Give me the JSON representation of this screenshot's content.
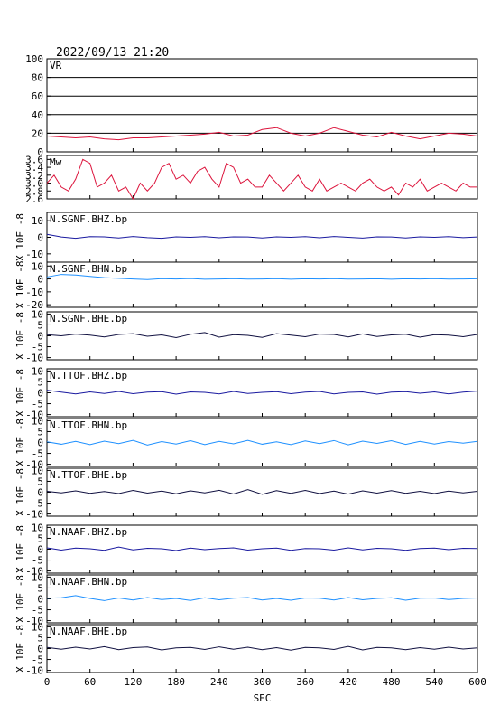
{
  "chart_data": [
    {
      "type": "line",
      "title": "2022/09/13 21:20",
      "label": "VR",
      "color": "#dc143c",
      "grid": true,
      "xlim": [
        0,
        600
      ],
      "ylim": [
        0,
        100
      ],
      "yticks": [
        0,
        20,
        40,
        60,
        80,
        100
      ],
      "x": [
        0,
        20,
        40,
        60,
        80,
        100,
        120,
        140,
        160,
        180,
        200,
        220,
        240,
        260,
        280,
        300,
        320,
        340,
        360,
        380,
        400,
        420,
        440,
        460,
        480,
        500,
        520,
        540,
        560,
        580,
        600
      ],
      "values": [
        17,
        16,
        15,
        16,
        14,
        13,
        15,
        15,
        16,
        17,
        18,
        19,
        21,
        17,
        18,
        24,
        26,
        20,
        17,
        20,
        26,
        22,
        18,
        16,
        21,
        17,
        14,
        17,
        20,
        19,
        17
      ]
    },
    {
      "type": "line",
      "label": "Mw",
      "color": "#dc143c",
      "xlim": [
        0,
        600
      ],
      "ylim": [
        2.6,
        3.7
      ],
      "yticks": [
        2.6,
        2.8,
        {
          "value": 3,
          "label": "3.0"
        },
        3.2,
        3.4,
        3.6
      ],
      "x": [
        0,
        10,
        20,
        30,
        40,
        50,
        60,
        70,
        80,
        90,
        100,
        110,
        120,
        130,
        140,
        150,
        160,
        170,
        180,
        190,
        200,
        210,
        220,
        230,
        240,
        250,
        260,
        270,
        280,
        290,
        300,
        310,
        320,
        330,
        340,
        350,
        360,
        370,
        380,
        390,
        400,
        410,
        420,
        430,
        440,
        450,
        460,
        470,
        480,
        490,
        500,
        510,
        520,
        530,
        540,
        550,
        560,
        570,
        580,
        590,
        600
      ],
      "values": [
        3.0,
        3.2,
        2.9,
        2.8,
        3.1,
        3.6,
        3.5,
        2.9,
        3.0,
        3.2,
        2.8,
        2.9,
        2.6,
        3.0,
        2.8,
        3.0,
        3.4,
        3.5,
        3.1,
        3.2,
        3.0,
        3.3,
        3.4,
        3.1,
        2.9,
        3.5,
        3.4,
        3.0,
        3.1,
        2.9,
        2.9,
        3.2,
        3.0,
        2.8,
        3.0,
        3.2,
        2.9,
        2.8,
        3.1,
        2.8,
        2.9,
        3.0,
        2.9,
        2.8,
        3.0,
        3.1,
        2.9,
        2.8,
        2.9,
        2.7,
        3.0,
        2.9,
        3.1,
        2.8,
        2.9,
        3.0,
        2.9,
        2.8,
        3.0,
        2.9,
        2.9
      ]
    },
    {
      "type": "line",
      "label": "N.SGNF.BHZ.bp",
      "ylabel": "X 10E -8",
      "color": "#1a1aa0",
      "xlim": [
        0,
        600
      ],
      "ylim": [
        -15,
        15
      ],
      "yticks": [
        -10,
        0,
        10
      ],
      "x": [
        0,
        20,
        40,
        60,
        80,
        100,
        120,
        140,
        160,
        180,
        200,
        220,
        240,
        260,
        280,
        300,
        320,
        340,
        360,
        380,
        400,
        420,
        440,
        460,
        480,
        500,
        520,
        540,
        560,
        580,
        600
      ],
      "values": [
        1.8,
        0.2,
        -0.6,
        0.4,
        0.3,
        -0.4,
        0.5,
        -0.2,
        -0.6,
        0.3,
        0,
        0.4,
        -0.3,
        0.3,
        0.2,
        -0.4,
        0.3,
        0,
        0.4,
        -0.3,
        0.5,
        0,
        -0.5,
        0.3,
        0.2,
        -0.4,
        0.3,
        0,
        0.4,
        -0.2,
        0.2
      ]
    },
    {
      "type": "line",
      "label": "N.SGNF.BHN.bp",
      "ylabel": "X 10E -8",
      "color": "#1e90ff",
      "xlim": [
        0,
        600
      ],
      "ylim": [
        -22,
        13
      ],
      "yticks": [
        -20,
        -10,
        0,
        10
      ],
      "x": [
        0,
        20,
        40,
        60,
        80,
        100,
        120,
        140,
        160,
        180,
        200,
        220,
        240,
        260,
        280,
        300,
        320,
        340,
        360,
        380,
        400,
        420,
        440,
        460,
        480,
        500,
        520,
        540,
        560,
        580,
        600
      ],
      "values": [
        1.5,
        3.5,
        3,
        2,
        1,
        0.5,
        0,
        -0.5,
        0.2,
        0,
        0.3,
        -0.2,
        0,
        0.2,
        -0.1,
        0,
        0.2,
        -0.2,
        0.1,
        0,
        0.2,
        -0.1,
        0,
        0.1,
        -0.2,
        0.1,
        0,
        0.2,
        -0.1,
        0,
        0.1
      ]
    },
    {
      "type": "line",
      "label": "N.SGNF.BHE.bp",
      "ylabel": "X 10E -8",
      "color": "#101040",
      "xlim": [
        0,
        600
      ],
      "ylim": [
        -11,
        11
      ],
      "yticks": [
        -10,
        -5,
        0,
        5,
        10
      ],
      "x": [
        0,
        20,
        40,
        60,
        80,
        100,
        120,
        140,
        160,
        180,
        200,
        220,
        240,
        260,
        280,
        300,
        320,
        340,
        360,
        380,
        400,
        420,
        440,
        460,
        480,
        500,
        520,
        540,
        560,
        580,
        600
      ],
      "values": [
        0.5,
        0,
        0.8,
        0.3,
        -0.5,
        0.6,
        1,
        -0.2,
        0.4,
        -0.8,
        0.7,
        1.5,
        -0.6,
        0.5,
        0.2,
        -0.7,
        1,
        0.3,
        -0.4,
        0.8,
        0.6,
        -0.5,
        0.9,
        -0.3,
        0.4,
        0.7,
        -0.6,
        0.5,
        0.3,
        -0.4,
        0.6
      ]
    },
    {
      "type": "line",
      "label": "N.TTOF.BHZ.bp",
      "ylabel": "X 10E -8",
      "color": "#1a1aa0",
      "xlim": [
        0,
        600
      ],
      "ylim": [
        -11,
        11
      ],
      "yticks": [
        -10,
        -5,
        0,
        5,
        10
      ],
      "x": [
        0,
        20,
        40,
        60,
        80,
        100,
        120,
        140,
        160,
        180,
        200,
        220,
        240,
        260,
        280,
        300,
        320,
        340,
        360,
        380,
        400,
        420,
        440,
        460,
        480,
        500,
        520,
        540,
        560,
        580,
        600
      ],
      "values": [
        1.2,
        0.3,
        -0.5,
        0.4,
        -0.3,
        0.6,
        -0.4,
        0.3,
        0.5,
        -0.6,
        0.4,
        0.2,
        -0.5,
        0.6,
        -0.3,
        0.2,
        0.5,
        -0.4,
        0.3,
        0.6,
        -0.5,
        0.2,
        0.4,
        -0.6,
        0.3,
        0.5,
        -0.2,
        0.4,
        -0.5,
        0.3,
        0.8
      ]
    },
    {
      "type": "line",
      "label": "N.TTOF.BHN.bp",
      "ylabel": "X 10E -8",
      "color": "#1e90ff",
      "xlim": [
        0,
        600
      ],
      "ylim": [
        -11,
        11
      ],
      "yticks": [
        -10,
        -5,
        0,
        5,
        10
      ],
      "x": [
        0,
        20,
        40,
        60,
        80,
        100,
        120,
        140,
        160,
        180,
        200,
        220,
        240,
        260,
        280,
        300,
        320,
        340,
        360,
        380,
        400,
        420,
        440,
        460,
        480,
        500,
        520,
        540,
        560,
        580,
        600
      ],
      "values": [
        0.3,
        -0.8,
        0.5,
        -1,
        0.6,
        -0.5,
        1,
        -1.2,
        0.4,
        -0.7,
        0.8,
        -1,
        0.5,
        -0.6,
        1,
        -0.8,
        0.3,
        -1,
        0.7,
        -0.5,
        0.9,
        -1.1,
        0.6,
        -0.4,
        0.8,
        -0.9,
        0.5,
        -0.7,
        0.4,
        -0.3,
        0.5
      ]
    },
    {
      "type": "line",
      "label": "N.TTOF.BHE.bp",
      "ylabel": "X 10E -8",
      "color": "#101040",
      "xlim": [
        0,
        600
      ],
      "ylim": [
        -11,
        11
      ],
      "yticks": [
        -10,
        -5,
        0,
        5,
        10
      ],
      "x": [
        0,
        20,
        40,
        60,
        80,
        100,
        120,
        140,
        160,
        180,
        200,
        220,
        240,
        260,
        280,
        300,
        320,
        340,
        360,
        380,
        400,
        420,
        440,
        460,
        480,
        500,
        520,
        540,
        560,
        580,
        600
      ],
      "values": [
        0.4,
        -0.3,
        0.6,
        -0.5,
        0.3,
        -0.6,
        0.8,
        -0.4,
        0.5,
        -0.7,
        0.6,
        -0.3,
        0.9,
        -0.8,
        1.2,
        -1,
        0.7,
        -0.5,
        0.8,
        -0.6,
        0.5,
        -0.9,
        0.6,
        -0.4,
        0.7,
        -0.5,
        0.4,
        -0.6,
        0.5,
        -0.3,
        0.4
      ]
    },
    {
      "type": "line",
      "label": "N.NAAF.BHZ.bp",
      "ylabel": "X 10E -8",
      "color": "#1a1aa0",
      "xlim": [
        0,
        600
      ],
      "ylim": [
        -11,
        11
      ],
      "yticks": [
        -10,
        -5,
        0,
        5,
        10
      ],
      "x": [
        0,
        20,
        40,
        60,
        80,
        100,
        120,
        140,
        160,
        180,
        200,
        220,
        240,
        260,
        280,
        300,
        320,
        340,
        360,
        380,
        400,
        420,
        440,
        460,
        480,
        500,
        520,
        540,
        560,
        580,
        600
      ],
      "values": [
        0.6,
        -0.4,
        0.5,
        0.2,
        -0.5,
        1,
        -0.3,
        0.4,
        0.2,
        -0.6,
        0.5,
        -0.2,
        0.3,
        0.6,
        -0.4,
        0.2,
        0.5,
        -0.5,
        0.3,
        0.2,
        -0.4,
        0.6,
        -0.3,
        0.4,
        0.2,
        -0.5,
        0.3,
        0.5,
        -0.2,
        0.4,
        0.3
      ]
    },
    {
      "type": "line",
      "label": "N.NAAF.BHN.bp",
      "ylabel": "X 10E -8",
      "color": "#1e90ff",
      "xlim": [
        0,
        600
      ],
      "ylim": [
        -11,
        11
      ],
      "yticks": [
        -10,
        -5,
        0,
        5,
        10
      ],
      "x": [
        0,
        20,
        40,
        60,
        80,
        100,
        120,
        140,
        160,
        180,
        200,
        220,
        240,
        260,
        280,
        300,
        320,
        340,
        360,
        380,
        400,
        420,
        440,
        460,
        480,
        500,
        520,
        540,
        560,
        580,
        600
      ],
      "values": [
        0.3,
        0.5,
        1.5,
        0.2,
        -0.8,
        0.4,
        -0.5,
        0.6,
        -0.3,
        0.2,
        -0.7,
        0.5,
        -0.4,
        0.3,
        0.6,
        -0.5,
        0.2,
        -0.6,
        0.4,
        0.3,
        -0.5,
        0.6,
        -0.4,
        0.2,
        0.5,
        -0.6,
        0.3,
        0.4,
        -0.3,
        0.2,
        0.4
      ]
    },
    {
      "type": "line",
      "label": "N.NAAF.BHE.bp",
      "ylabel": "X 10E -8",
      "color": "#101040",
      "xlabel": "SEC",
      "xlim": [
        0,
        600
      ],
      "xticks": [
        0,
        60,
        120,
        180,
        240,
        300,
        360,
        420,
        480,
        540,
        600
      ],
      "ylim": [
        -11,
        11
      ],
      "yticks": [
        -10,
        -5,
        0,
        5,
        10
      ],
      "x": [
        0,
        20,
        40,
        60,
        80,
        100,
        120,
        140,
        160,
        180,
        200,
        220,
        240,
        260,
        280,
        300,
        320,
        340,
        360,
        380,
        400,
        420,
        440,
        460,
        480,
        500,
        520,
        540,
        560,
        580,
        600
      ],
      "values": [
        0.5,
        -0.3,
        0.6,
        -0.2,
        0.9,
        -0.5,
        0.4,
        0.7,
        -0.6,
        0.3,
        0.5,
        -0.4,
        0.8,
        -0.3,
        0.6,
        -0.5,
        0.4,
        -0.7,
        0.5,
        0.3,
        -0.4,
        1,
        -0.6,
        0.5,
        0.3,
        -0.5,
        0.4,
        -0.3,
        0.6,
        -0.2,
        0.3
      ]
    }
  ]
}
